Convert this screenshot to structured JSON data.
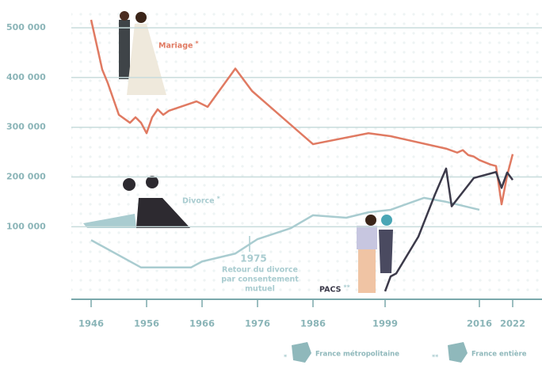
{
  "chart_data": {
    "type": "line",
    "yticks": [
      {
        "value": 100000,
        "label": "100 000"
      },
      {
        "value": 200000,
        "label": "200 000"
      },
      {
        "value": 300000,
        "label": "300 000"
      },
      {
        "value": 400000,
        "label": "400 000"
      },
      {
        "value": 500000,
        "label": "500 000"
      }
    ],
    "ylim": [
      -46000,
      540000
    ],
    "xticks": [
      1946,
      1956,
      1966,
      1976,
      1986,
      1999,
      2016,
      2022
    ],
    "xlim": [
      1944,
      2024
    ],
    "grid": true,
    "series": [
      {
        "name": "Mariage",
        "marker": "*",
        "color": "#e07a62",
        "x": [
          1946,
          1948,
          1949,
          1951,
          1953,
          1954,
          1955,
          1956,
          1957,
          1958,
          1959,
          1960,
          1965,
          1967,
          1972,
          1975,
          1986,
          1996,
          2000,
          2010,
          2012,
          2013,
          2014,
          2015,
          2016,
          2018,
          2019,
          2020,
          2021,
          2022
        ],
        "values": [
          516000,
          416000,
          389000,
          325000,
          309000,
          320000,
          309000,
          288000,
          320000,
          336000,
          325000,
          333000,
          352000,
          341000,
          418000,
          373000,
          266000,
          288000,
          282000,
          257000,
          249000,
          254000,
          244000,
          241000,
          234000,
          225000,
          222000,
          145000,
          203000,
          246000
        ]
      },
      {
        "name": "Divorce",
        "marker": "*",
        "color": "#a9ccd0",
        "x": [
          1946,
          1955,
          1964,
          1966,
          1972,
          1976,
          1982,
          1986,
          1992,
          1996,
          2000,
          2002,
          2006,
          2010,
          2016
        ],
        "values": [
          73000,
          18000,
          18000,
          30000,
          46000,
          75000,
          97000,
          123000,
          118000,
          129000,
          134000,
          142000,
          158000,
          150000,
          134000
        ]
      },
      {
        "name": "PACS",
        "marker": "**",
        "color": "#3c3a4a",
        "x": [
          1999,
          2000,
          2001,
          2005,
          2008,
          2010,
          2011,
          2015,
          2019,
          2020,
          2021,
          2022
        ],
        "values": [
          -30000,
          0,
          6000,
          80000,
          165000,
          217000,
          141000,
          198000,
          210000,
          178000,
          209000,
          194000
        ]
      }
    ],
    "annotation": {
      "year": "1975",
      "text": [
        "Retour du divorce",
        "par consentement",
        "mutuel"
      ]
    },
    "legend": [
      {
        "marker": "*",
        "label": "France métropolitaine"
      },
      {
        "marker": "**",
        "label": "France entière"
      }
    ]
  }
}
